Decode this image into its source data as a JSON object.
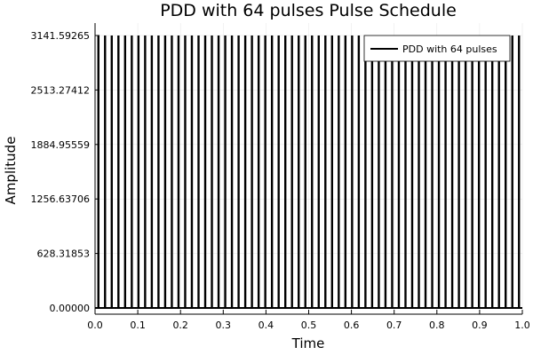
{
  "chart_data": {
    "type": "line",
    "title": "PDD with 64 pulses Pulse Schedule",
    "xlabel": "Time",
    "ylabel": "Amplitude",
    "xlim": [
      0.0,
      1.0
    ],
    "ylim": [
      0.0,
      3141.59265
    ],
    "xticks": [
      "0.0",
      "0.1",
      "0.2",
      "0.3",
      "0.4",
      "0.5",
      "0.6",
      "0.7",
      "0.8",
      "0.9",
      "1.0"
    ],
    "xtick_values": [
      0.0,
      0.1,
      0.2,
      0.3,
      0.4,
      0.5,
      0.6,
      0.7,
      0.8,
      0.9,
      1.0
    ],
    "yticks": [
      "0.00000",
      "628.31853",
      "1256.63706",
      "1884.95559",
      "2513.27412",
      "3141.59265"
    ],
    "ytick_values": [
      0.0,
      628.31853,
      1256.63706,
      1884.95559,
      2513.27412,
      3141.59265
    ],
    "grid": true,
    "legend_position": "top-right",
    "series": [
      {
        "name": "PDD with 64 pulses",
        "color": "#000000",
        "pulse_count": 64,
        "pulse_amplitude": 3141.59265,
        "baseline": 0.0
      }
    ]
  }
}
